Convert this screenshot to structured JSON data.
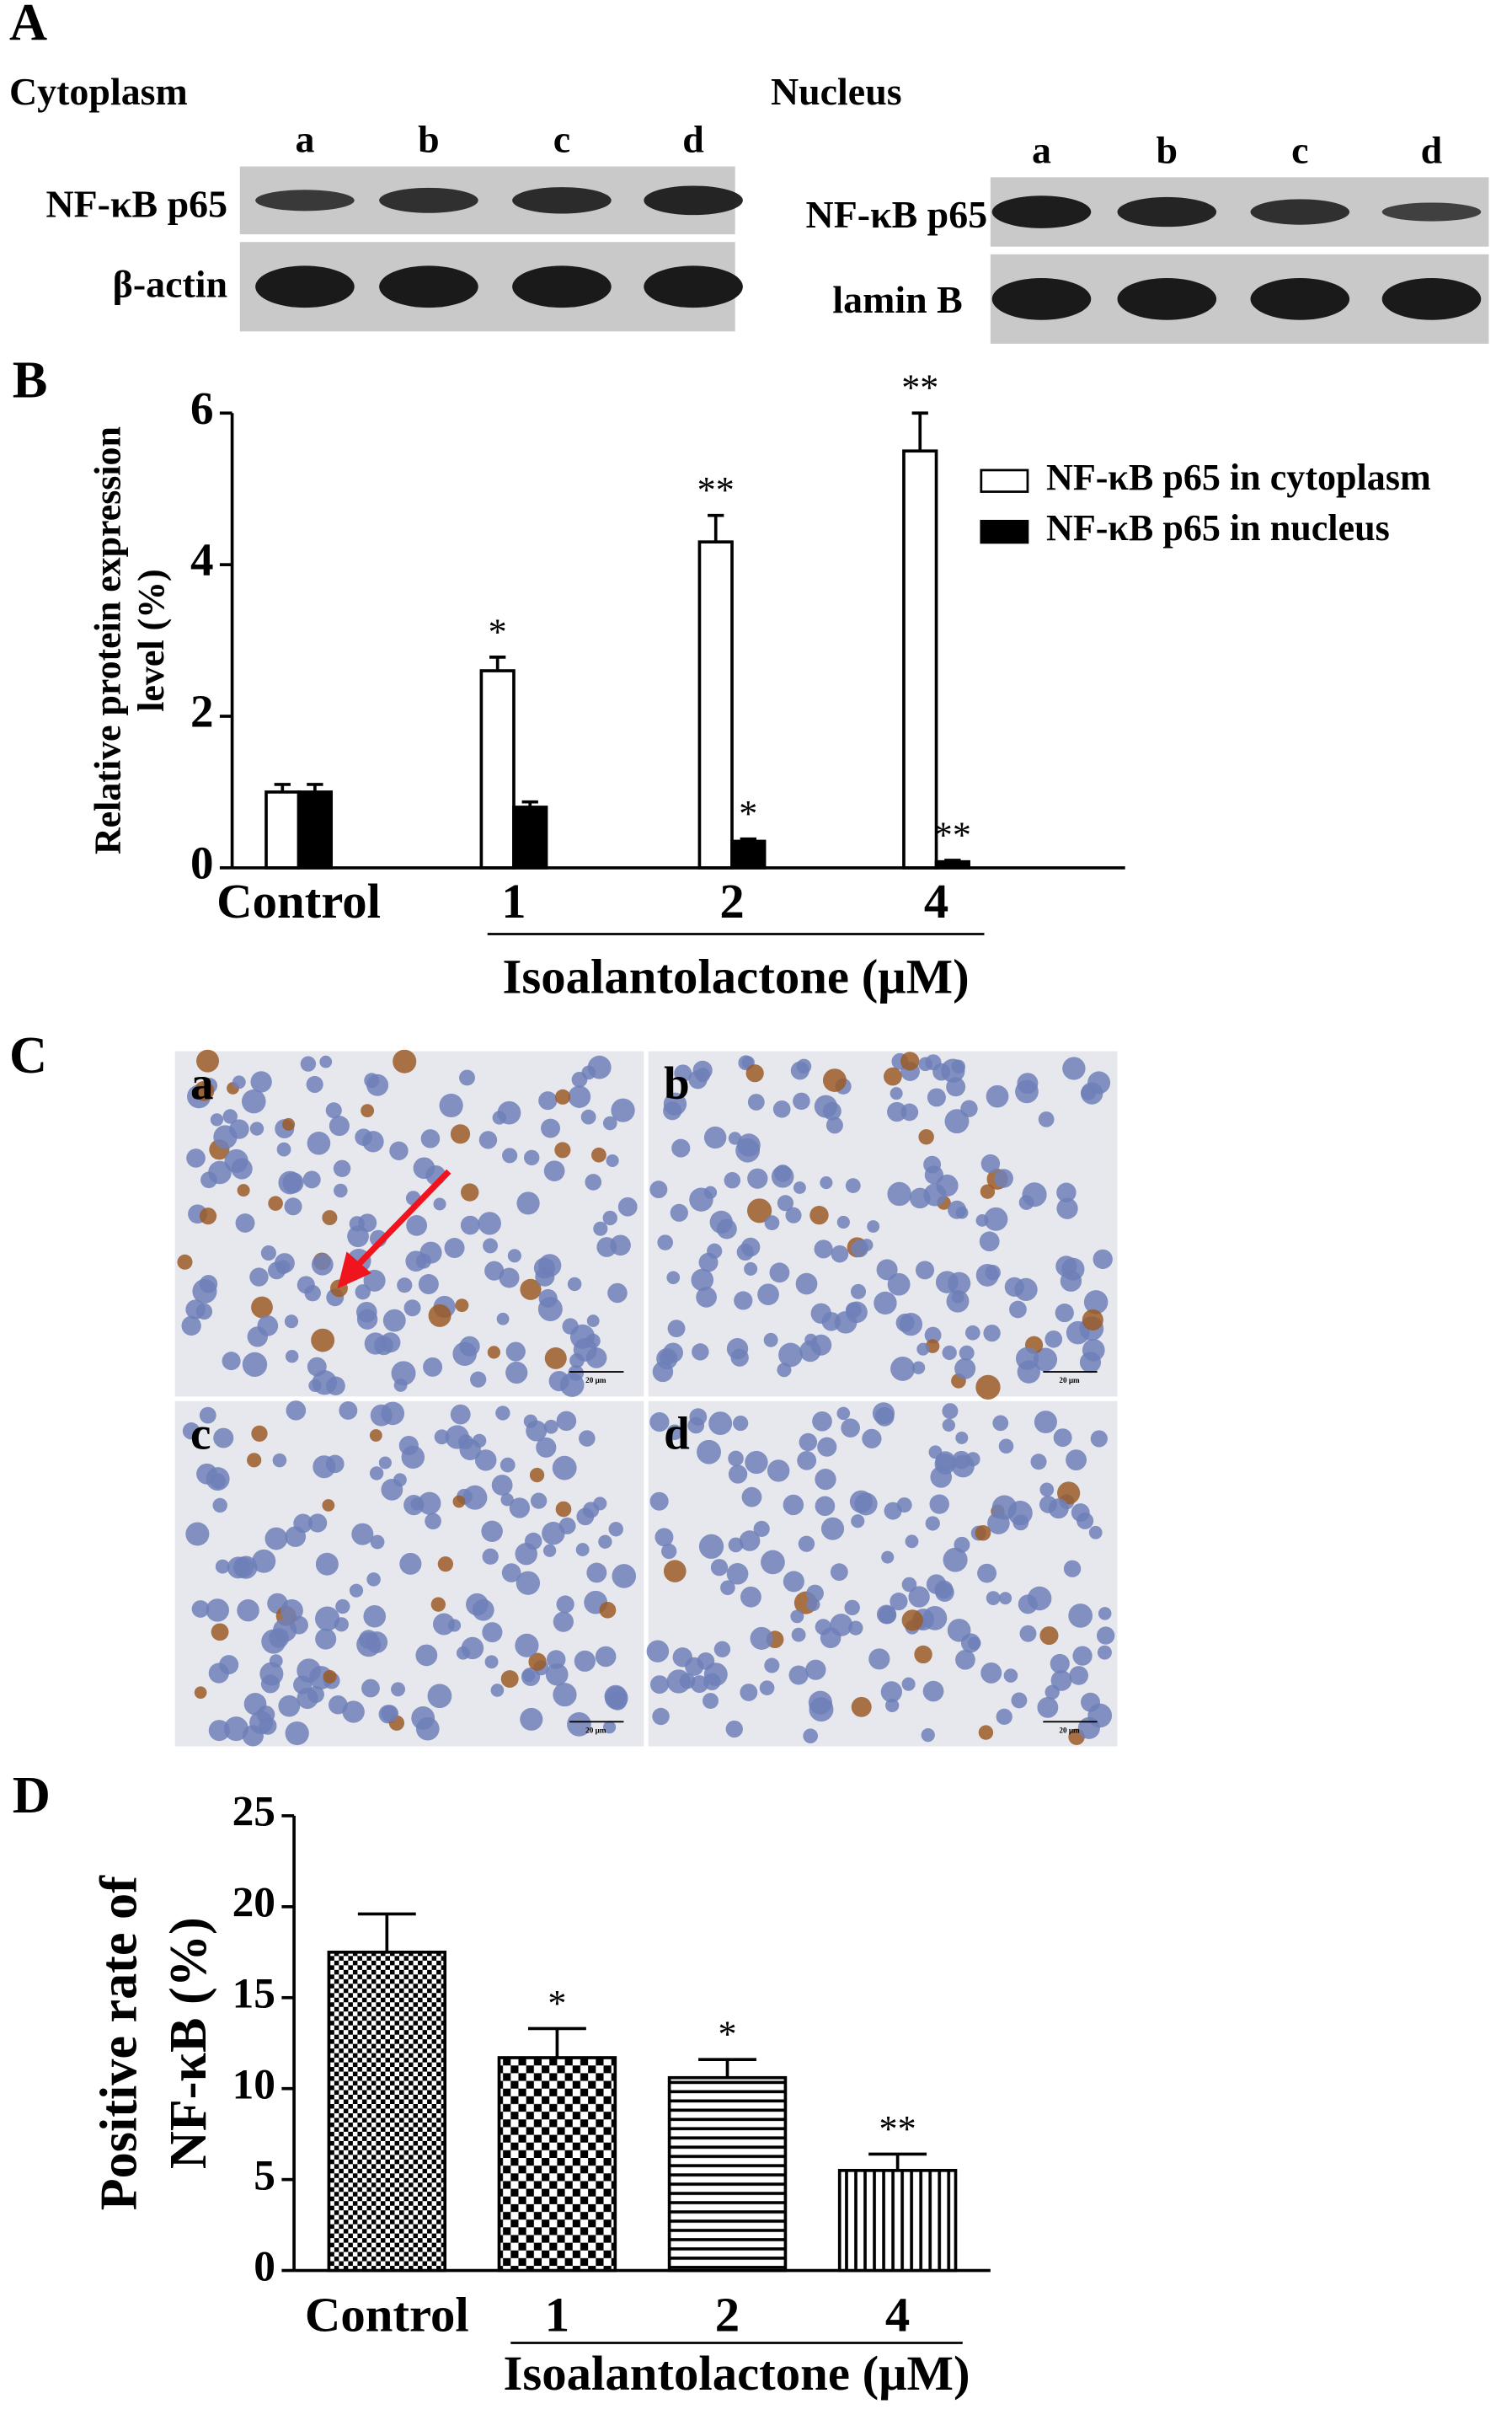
{
  "panel_a": {
    "label": "A",
    "cytoplasm": {
      "title": "Cytoplasm",
      "lanes": [
        "a",
        "b",
        "c",
        "d"
      ],
      "rows": [
        "NF-κB p65",
        "β-actin"
      ]
    },
    "nucleus": {
      "title": "Nucleus",
      "lanes": [
        "a",
        "b",
        "c",
        "d"
      ],
      "rows": [
        "NF-κB p65",
        "lamin B"
      ]
    }
  },
  "panel_c": {
    "label": "C",
    "images": [
      "a",
      "b",
      "c",
      "d"
    ],
    "scale_bar": "20 μm"
  },
  "chart_data": [
    {
      "panel": "B",
      "type": "bar",
      "ylabel": [
        "Relative protein expression",
        "level (%)"
      ],
      "xlabel": "Isoalantolactone (μM)",
      "categories": [
        "Control",
        "1",
        "2",
        "4"
      ],
      "series": [
        {
          "name": "NF-κB p65 in cytoplasm",
          "color": "#ffffff",
          "values": [
            1.0,
            2.6,
            4.3,
            5.5
          ],
          "errors": [
            0.1,
            0.18,
            0.35,
            0.5
          ],
          "annotations": [
            null,
            "*",
            "**",
            "**"
          ]
        },
        {
          "name": "NF-κB p65 in nucleus",
          "color": "#000000",
          "values": [
            1.0,
            0.8,
            0.35,
            0.08
          ],
          "errors": [
            0.1,
            0.07,
            0.03,
            0.02
          ],
          "annotations": [
            null,
            null,
            "*",
            "**"
          ]
        }
      ],
      "ylim": [
        0,
        6
      ],
      "yticks": [
        0,
        2,
        4,
        6
      ],
      "legend": "upper right"
    },
    {
      "panel": "D",
      "type": "bar",
      "ylabel": [
        "Positive rate of",
        "NF-κB (%)"
      ],
      "xlabel": "Isoalantolactone (μM)",
      "categories": [
        "Control",
        "1",
        "2",
        "4"
      ],
      "values": [
        17.5,
        11.7,
        10.6,
        5.5
      ],
      "errors": [
        2.1,
        1.6,
        1.0,
        0.9
      ],
      "annotations": [
        null,
        "*",
        "*",
        "**"
      ],
      "patterns": [
        "checker-fine",
        "checker",
        "horizontal",
        "vertical"
      ],
      "color": "#000000",
      "ylim": [
        0,
        25
      ],
      "yticks": [
        0,
        5,
        10,
        15,
        20,
        25
      ]
    }
  ]
}
